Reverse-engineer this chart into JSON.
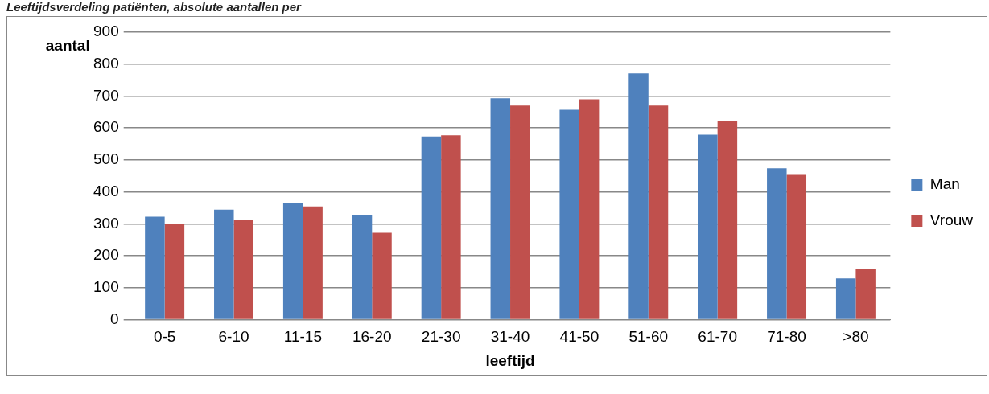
{
  "chart_data": {
    "type": "bar",
    "title": "Leeftijdsverdeling patiënten, absolute aantallen per",
    "xlabel": "leeftijd",
    "ylabel": "aantal",
    "categories": [
      "0-5",
      "6-10",
      "11-15",
      "16-20",
      "21-30",
      "31-40",
      "41-50",
      "51-60",
      "61-70",
      "71-80",
      ">80"
    ],
    "series": [
      {
        "name": "Man",
        "color": "#4f81bd",
        "values": [
          322,
          344,
          364,
          327,
          573,
          693,
          657,
          771,
          579,
          474,
          129
        ]
      },
      {
        "name": "Vrouw",
        "color": "#c0504d",
        "values": [
          298,
          312,
          354,
          272,
          577,
          670,
          690,
          670,
          623,
          453,
          157
        ]
      }
    ],
    "ylim": [
      0,
      900
    ],
    "yticks": [
      0,
      100,
      200,
      300,
      400,
      500,
      600,
      700,
      800,
      900
    ],
    "grid": "y",
    "legend": "right"
  }
}
